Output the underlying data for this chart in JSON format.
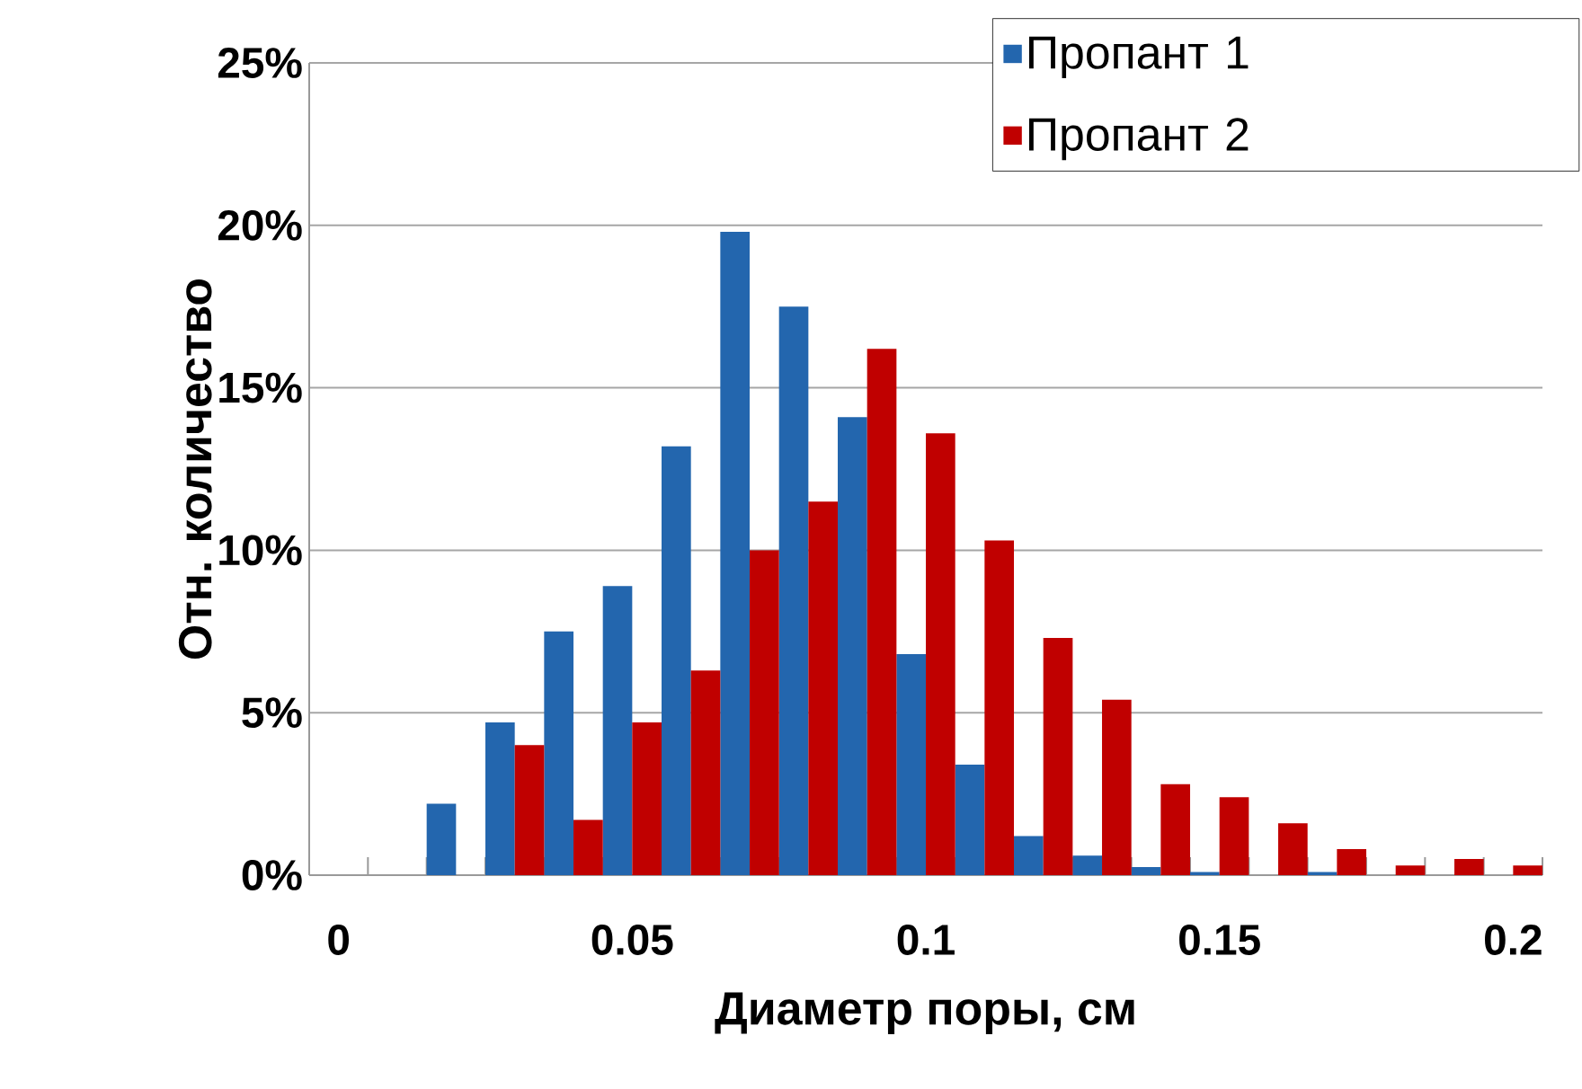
{
  "chart_data": {
    "type": "bar",
    "xlabel": "Диаметр поры, см",
    "ylabel": "Отн. количество",
    "categories": [
      "0",
      null,
      null,
      null,
      null,
      "0.05",
      null,
      null,
      null,
      null,
      "0.1",
      null,
      null,
      null,
      null,
      "0.15",
      null,
      null,
      null,
      null,
      "0.2"
    ],
    "series": [
      {
        "name": "Пропант 1",
        "color": "#2366ae",
        "values": [
          0,
          0,
          2.2,
          4.7,
          7.5,
          8.9,
          13.2,
          19.8,
          17.5,
          14.1,
          6.8,
          3.4,
          1.2,
          0.6,
          0.25,
          0.1,
          0,
          0.1,
          0,
          0,
          0
        ]
      },
      {
        "name": "Пропант 2",
        "color": "#c00000",
        "values": [
          0,
          0,
          0,
          4.0,
          1.7,
          4.7,
          6.3,
          10.0,
          11.5,
          16.2,
          13.6,
          10.3,
          7.3,
          5.4,
          2.8,
          2.4,
          1.6,
          0.8,
          0.3,
          0.5,
          0.3
        ]
      }
    ],
    "ylim": [
      0,
      25
    ],
    "yticks": [
      {
        "value": 0,
        "label": "0%"
      },
      {
        "value": 5,
        "label": "5%"
      },
      {
        "value": 10,
        "label": "10%"
      },
      {
        "value": 15,
        "label": "15%"
      },
      {
        "value": 20,
        "label": "20%"
      },
      {
        "value": 25,
        "label": "25%"
      }
    ],
    "grid": "y",
    "legend": "top right"
  }
}
